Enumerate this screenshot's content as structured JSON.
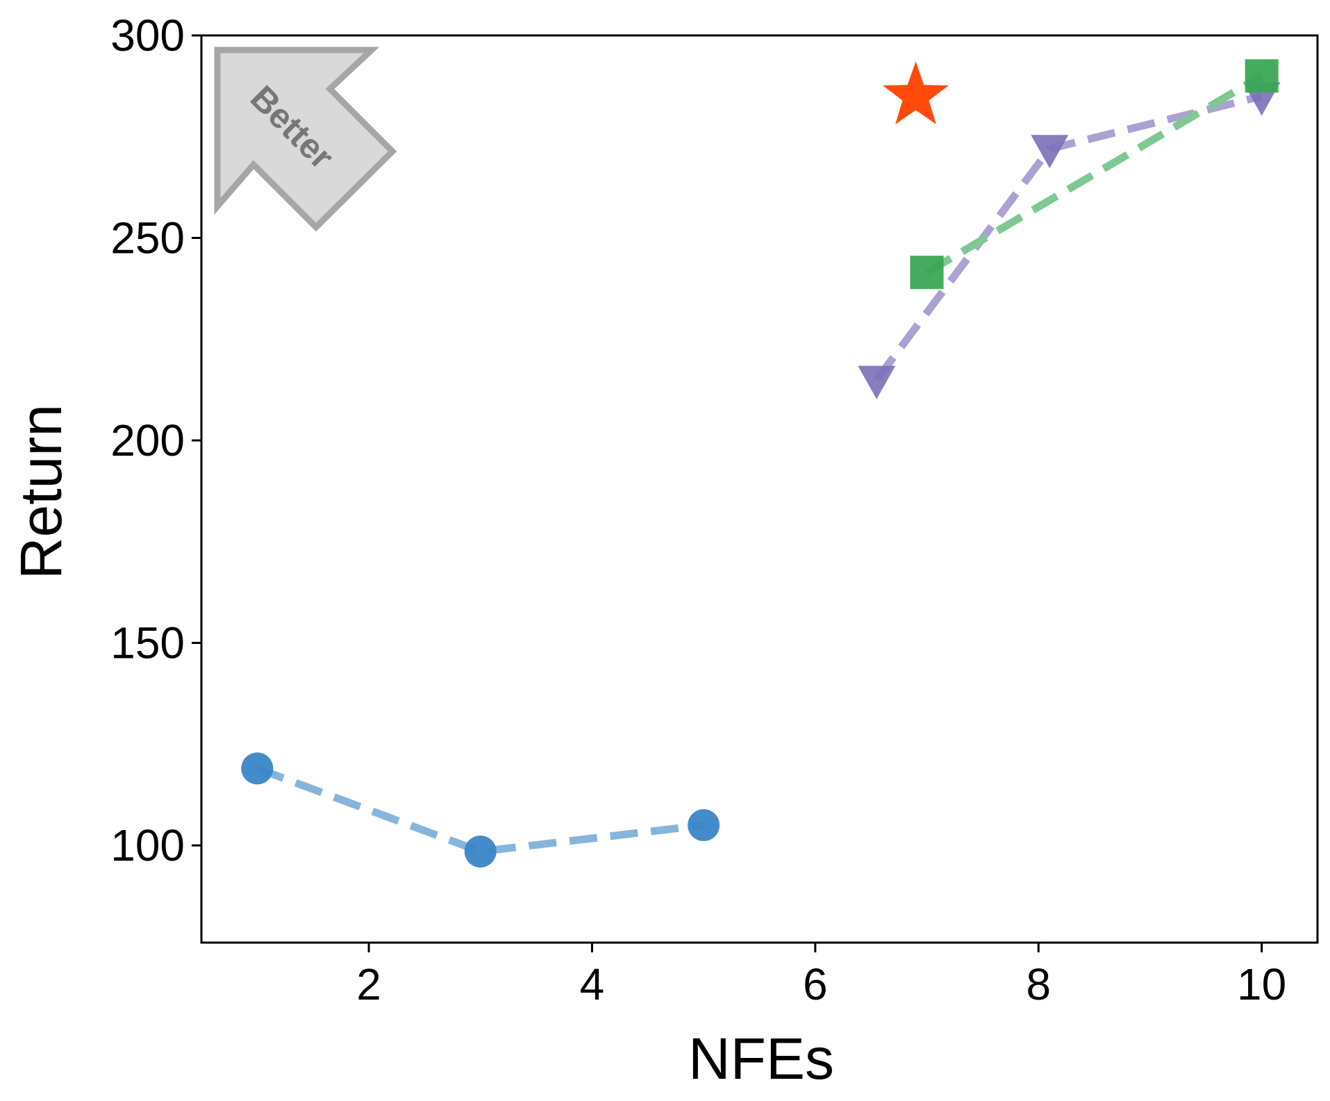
{
  "chart_data": {
    "type": "scatter",
    "xlabel": "NFEs",
    "ylabel": "Return",
    "xlim": [
      0.5,
      10.5
    ],
    "ylim": [
      76,
      300
    ],
    "x_ticks": [
      2,
      4,
      6,
      8,
      10
    ],
    "y_ticks": [
      100,
      150,
      200,
      250,
      300
    ],
    "grid": false,
    "annotation": {
      "text": "Better",
      "placement": "top-left",
      "direction": "up-left"
    },
    "series": [
      {
        "marker": "circle",
        "color": "#3a86c6",
        "line_color": "#86b5dc",
        "dashed": true,
        "points": [
          [
            1,
            119
          ],
          [
            3,
            98.5
          ],
          [
            5,
            105
          ]
        ]
      },
      {
        "marker": "triangle-down",
        "color": "#7b6fb8",
        "line_color": "#a9a2d2",
        "dashed": true,
        "points": [
          [
            6.55,
            215
          ],
          [
            8.1,
            272
          ],
          [
            10,
            285
          ]
        ]
      },
      {
        "marker": "square",
        "color": "#3aa656",
        "line_color": "#7ec991",
        "dashed": true,
        "points": [
          [
            7,
            241.5
          ],
          [
            10,
            290
          ]
        ]
      },
      {
        "marker": "star",
        "color": "#ff4a0a",
        "dashed": false,
        "points": [
          [
            6.9,
            285
          ]
        ]
      }
    ]
  }
}
